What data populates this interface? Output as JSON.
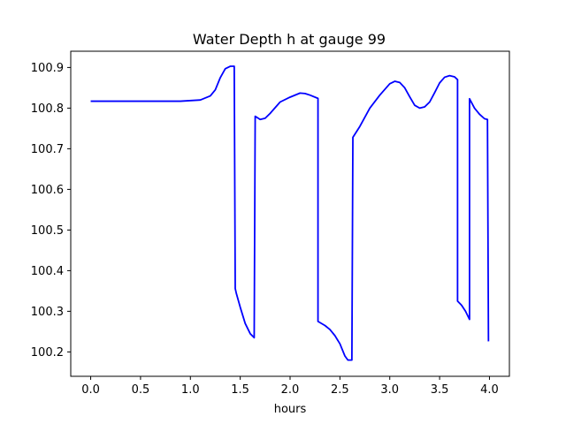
{
  "chart_data": {
    "type": "line",
    "title": "Water Depth h at gauge 99",
    "xlabel": "hours",
    "ylabel": "",
    "xlim": [
      -0.2,
      4.2
    ],
    "ylim": [
      100.14,
      100.94
    ],
    "xticks": [
      0.0,
      0.5,
      1.0,
      1.5,
      2.0,
      2.5,
      3.0,
      3.5,
      4.0
    ],
    "xtick_labels": [
      "0.0",
      "0.5",
      "1.0",
      "1.5",
      "2.0",
      "2.5",
      "3.0",
      "3.5",
      "4.0"
    ],
    "yticks": [
      100.2,
      100.3,
      100.4,
      100.5,
      100.6,
      100.7,
      100.8,
      100.9
    ],
    "ytick_labels": [
      "100.2",
      "100.3",
      "100.4",
      "100.5",
      "100.6",
      "100.7",
      "100.8",
      "100.9"
    ],
    "grid": false,
    "series": [
      {
        "color": "#0000ff",
        "x": [
          0.0,
          0.5,
          0.9,
          1.1,
          1.2,
          1.25,
          1.3,
          1.35,
          1.4,
          1.44,
          1.45,
          1.46,
          1.5,
          1.55,
          1.6,
          1.64,
          1.65,
          1.7,
          1.75,
          1.8,
          1.9,
          2.0,
          2.1,
          2.15,
          2.2,
          2.28,
          2.28,
          2.35,
          2.4,
          2.45,
          2.5,
          2.55,
          2.58,
          2.62,
          2.63,
          2.7,
          2.8,
          2.9,
          3.0,
          3.05,
          3.1,
          3.15,
          3.2,
          3.25,
          3.3,
          3.35,
          3.4,
          3.45,
          3.5,
          3.55,
          3.6,
          3.65,
          3.68,
          3.68,
          3.72,
          3.76,
          3.8,
          3.8,
          3.85,
          3.9,
          3.95,
          3.98,
          3.99
        ],
        "y": [
          100.817,
          100.817,
          100.817,
          100.82,
          100.83,
          100.845,
          100.875,
          100.897,
          100.903,
          100.903,
          100.356,
          100.345,
          100.31,
          100.27,
          100.245,
          100.235,
          100.78,
          100.772,
          100.775,
          100.787,
          100.815,
          100.827,
          100.837,
          100.836,
          100.832,
          100.824,
          100.275,
          100.265,
          100.255,
          100.24,
          100.22,
          100.19,
          100.18,
          100.18,
          100.728,
          100.755,
          100.8,
          100.832,
          100.86,
          100.866,
          100.863,
          100.85,
          100.828,
          100.807,
          100.8,
          100.803,
          100.815,
          100.838,
          100.862,
          100.876,
          100.88,
          100.877,
          100.87,
          100.325,
          100.315,
          100.3,
          100.28,
          100.823,
          100.8,
          100.785,
          100.774,
          100.772,
          100.226
        ]
      }
    ]
  }
}
